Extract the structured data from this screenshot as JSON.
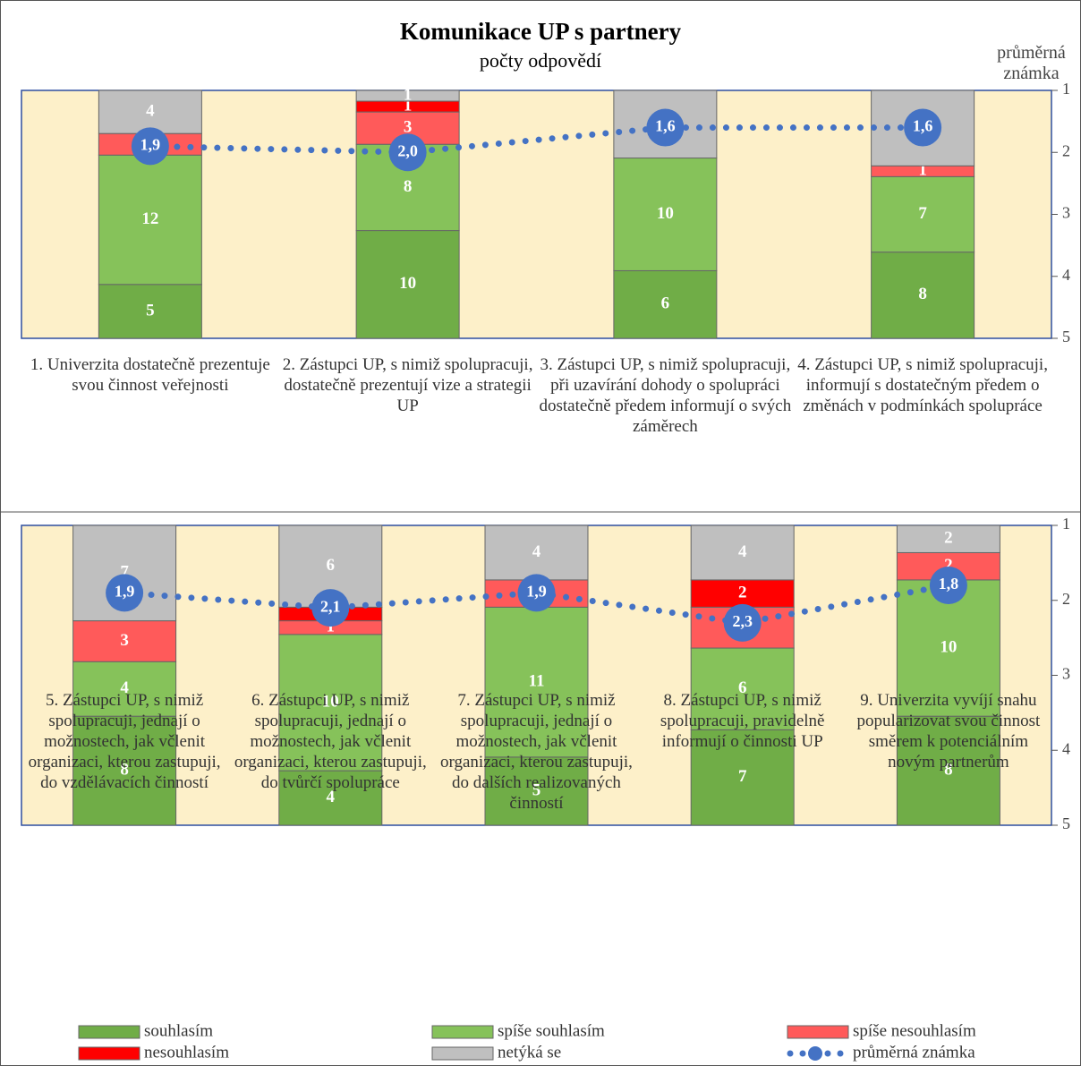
{
  "chart_data": {
    "type": "bar",
    "stacked": "percent",
    "title": "Komunikace UP s partnery",
    "subtitle": "počty odpovědí",
    "y2label": "průměrná známka",
    "y2lim": [
      1,
      5
    ],
    "y2ticks": [
      1,
      2,
      3,
      4,
      5
    ],
    "y2_reversed": true,
    "series": [
      {
        "name": "souhlasím",
        "color": "#70ad47",
        "values": [
          [
            5,
            10,
            6,
            8
          ],
          [
            8,
            4,
            5,
            7,
            8
          ]
        ]
      },
      {
        "name": "spíše souhlasím",
        "color": "#86c25a",
        "values": [
          [
            12,
            8,
            10,
            7
          ],
          [
            4,
            10,
            11,
            6,
            10
          ]
        ]
      },
      {
        "name": "spíše nesouhlasím",
        "color": "#ff5a5a",
        "values": [
          [
            2,
            3,
            0,
            1
          ],
          [
            3,
            1,
            2,
            3,
            2
          ]
        ]
      },
      {
        "name": "nesouhlasím",
        "color": "#ff0000",
        "values": [
          [
            0,
            1,
            0,
            0
          ],
          [
            0,
            1,
            0,
            2,
            0
          ]
        ]
      },
      {
        "name": "netýká se",
        "color": "#bfbfbf",
        "values": [
          [
            4,
            1,
            6,
            7
          ],
          [
            7,
            6,
            4,
            4,
            2
          ]
        ]
      }
    ],
    "line": {
      "name": "průměrná známka",
      "color": "#4472c4",
      "axis": "y2",
      "values": [
        [
          1.9,
          2.0,
          1.6,
          1.6
        ],
        [
          1.9,
          2.1,
          1.9,
          2.3,
          1.8
        ]
      ],
      "value_labels": [
        [
          "1,9",
          "2,0",
          "1,6",
          "1,6"
        ],
        [
          "1,9",
          "2,1",
          "1,9",
          "2,3",
          "1,8"
        ]
      ]
    },
    "categories": [
      [
        "1. Univerzita dostatečně prezentuje svou činnost veřejnosti",
        "2. Zástupci UP, s nimiž spolupracuji, dostatečně prezentují vize a strategii UP",
        "3. Zástupci UP, s nimiž spolupracuji, při uzavírání dohody o spolupráci dostatečně předem informují o svých záměrech",
        "4. Zástupci UP, s nimiž spolupracuji, informují s dostatečným předem o změnách v podmínkách spolupráce"
      ],
      [
        "5. Zástupci UP, s nimiž spolupracuji, jednají o možnostech, jak včlenit organizaci, kterou zastupuji, do vzdělávacích činností",
        "6. Zástupci UP, s nimiž spolupracuji, jednají o možnostech, jak včlenit organizaci, kterou zastupuji, do tvůrčí spolupráce",
        "7. Zástupci UP, s nimiž spolupracuji, jednají o možnostech, jak včlenit organizaci, kterou zastupuji, do dalších realizovaných činností",
        "8. Zástupci UP, s nimiž spolupracuji, pravidelně informují o činnosti UP",
        "9. Univerzita vyvíjí snahu popularizovat svou činnost směrem k potenciálním novým partnerům"
      ]
    ]
  }
}
